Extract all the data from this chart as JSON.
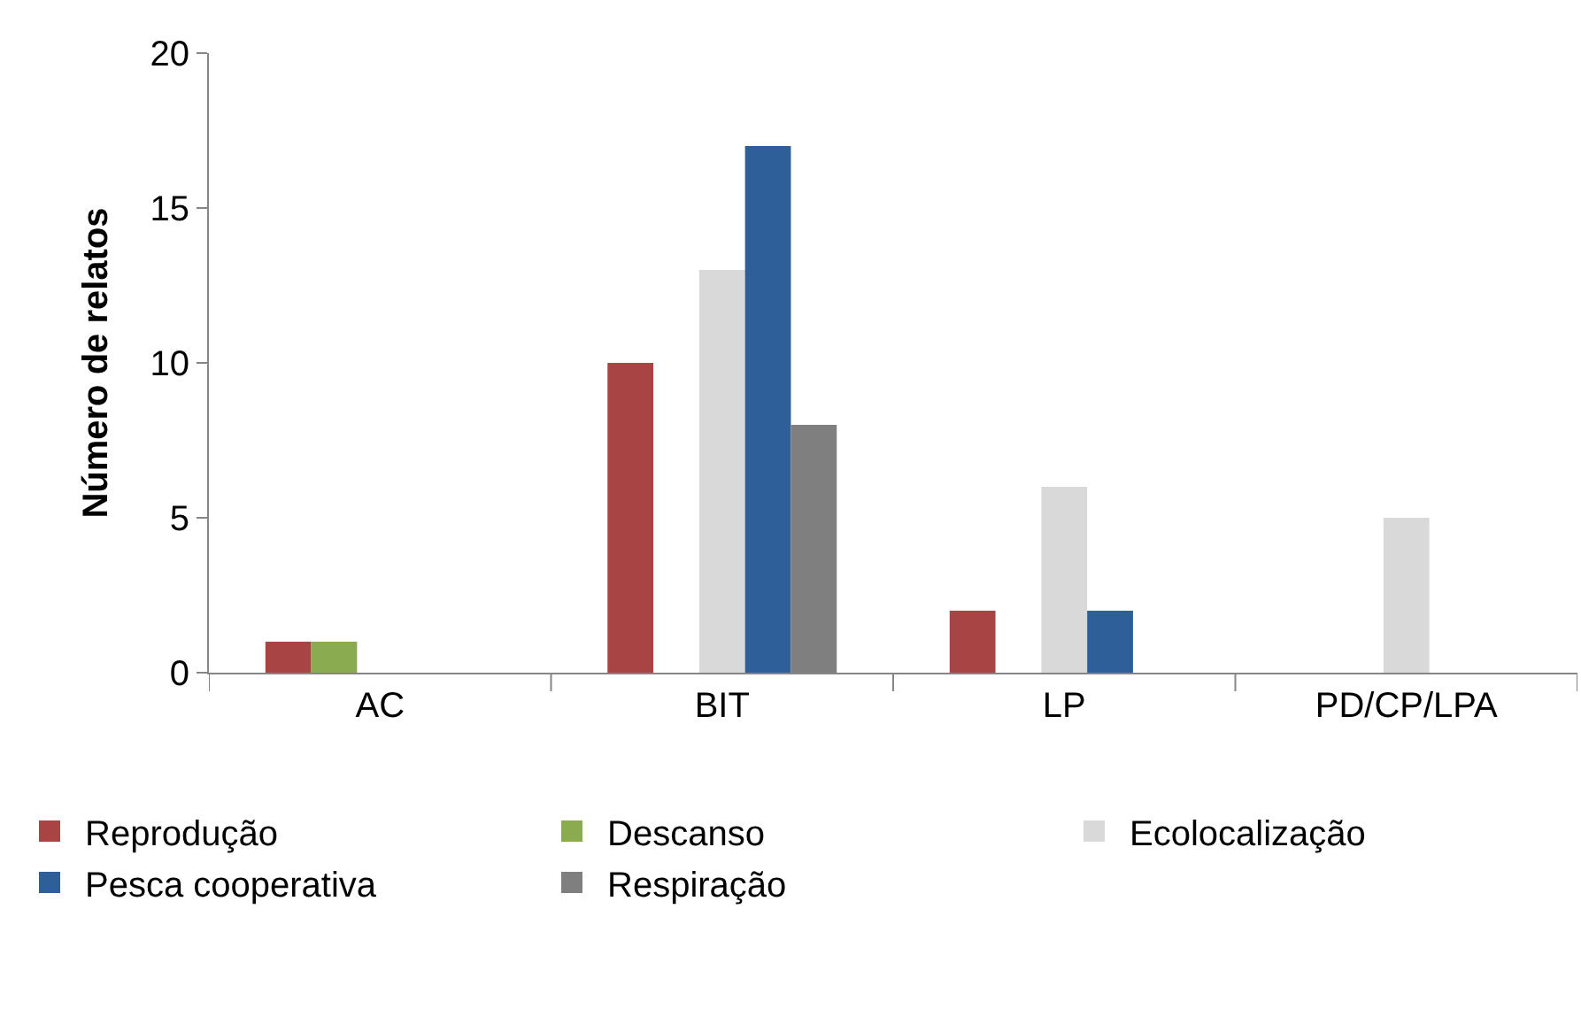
{
  "chart_data": {
    "type": "bar",
    "ylabel": "Número de relatos",
    "categories": [
      "AC",
      "BIT",
      "LP",
      "PD/CP/LPA"
    ],
    "series": [
      {
        "name": "Reprodução",
        "color": "#a84444",
        "values": [
          1,
          10,
          2,
          0
        ]
      },
      {
        "name": "Descanso",
        "color": "#8aab4f",
        "values": [
          1,
          0,
          0,
          0
        ]
      },
      {
        "name": "Ecolocalização",
        "color": "#d9d9d9",
        "values": [
          0,
          13,
          6,
          5
        ]
      },
      {
        "name": "Pesca cooperativa",
        "color": "#2f5f98",
        "values": [
          0,
          17,
          2,
          0
        ]
      },
      {
        "name": "Respiração",
        "color": "#7f7f7f",
        "values": [
          0,
          8,
          0,
          0
        ]
      }
    ],
    "ylim": [
      0,
      20
    ],
    "yticks": [
      0,
      5,
      10,
      15,
      20
    ],
    "legend": "bottom"
  }
}
